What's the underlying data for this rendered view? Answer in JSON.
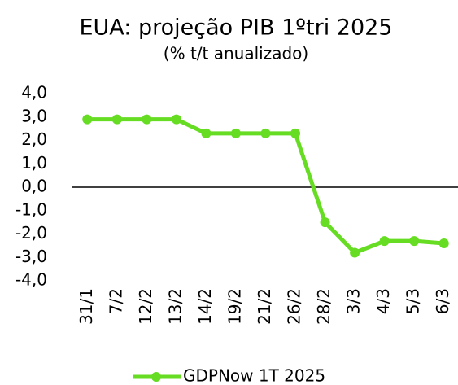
{
  "chart_data": {
    "type": "line",
    "title": "EUA: projeção PIB 1ºtri 2025",
    "subtitle": "(% t/t anualizado)",
    "categories": [
      "31/1",
      "7/2",
      "12/2",
      "13/2",
      "14/2",
      "19/2",
      "21/2",
      "26/2",
      "28/2",
      "3/3",
      "4/3",
      "5/3",
      "6/3"
    ],
    "series": [
      {
        "name": "GDPNow 1T 2025",
        "color": "#66dd22",
        "values": [
          2.9,
          2.9,
          2.9,
          2.9,
          2.3,
          2.3,
          2.3,
          2.3,
          -1.5,
          -2.8,
          -2.3,
          -2.3,
          -2.4
        ]
      }
    ],
    "ylim": [
      -4,
      4
    ],
    "yticks": [
      {
        "value": 4,
        "label": "4,0"
      },
      {
        "value": 3,
        "label": "3,0"
      },
      {
        "value": 2,
        "label": "2,0"
      },
      {
        "value": 1,
        "label": "1,0"
      },
      {
        "value": 0,
        "label": "0,0"
      },
      {
        "value": -1,
        "label": "-1,0"
      },
      {
        "value": -2,
        "label": "-2,0"
      },
      {
        "value": -3,
        "label": "-3,0"
      },
      {
        "value": -4,
        "label": "-4,0"
      }
    ],
    "grid": false,
    "legend": "bottom"
  }
}
